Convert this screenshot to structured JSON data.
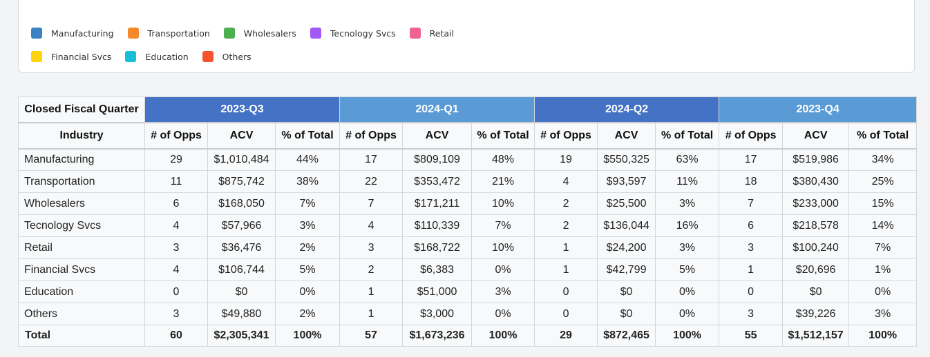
{
  "legend": [
    {
      "label": "Manufacturing",
      "color": "#3b82c4"
    },
    {
      "label": "Transportation",
      "color": "#f5892a"
    },
    {
      "label": "Wholesalers",
      "color": "#4caf50"
    },
    {
      "label": "Tecnology Svcs",
      "color": "#a259f7"
    },
    {
      "label": "Retail",
      "color": "#f06292"
    },
    {
      "label": "Financial Svcs",
      "color": "#fdd40a"
    },
    {
      "label": "Education",
      "color": "#17bed8"
    },
    {
      "label": "Others",
      "color": "#f4532e"
    }
  ],
  "table": {
    "corner_label": "Closed Fiscal Quarter",
    "quarters": [
      {
        "label": "2023-Q3",
        "color": "#4472c4"
      },
      {
        "label": "2024-Q1",
        "color": "#5b9bd5"
      },
      {
        "label": "2024-Q2",
        "color": "#4472c4"
      },
      {
        "label": "2023-Q4",
        "color": "#5b9bd5"
      }
    ],
    "industry_header": "Industry",
    "sub_headers": [
      "# of Opps",
      "ACV",
      "% of Total"
    ],
    "rows": [
      {
        "industry": "Manufacturing",
        "cells": [
          "29",
          "$1,010,484",
          "44%",
          "17",
          "$809,109",
          "48%",
          "19",
          "$550,325",
          "63%",
          "17",
          "$519,986",
          "34%"
        ]
      },
      {
        "industry": "Transportation",
        "cells": [
          "11",
          "$875,742",
          "38%",
          "22",
          "$353,472",
          "21%",
          "4",
          "$93,597",
          "11%",
          "18",
          "$380,430",
          "25%"
        ]
      },
      {
        "industry": "Wholesalers",
        "cells": [
          "6",
          "$168,050",
          "7%",
          "7",
          "$171,211",
          "10%",
          "2",
          "$25,500",
          "3%",
          "7",
          "$233,000",
          "15%"
        ]
      },
      {
        "industry": "Tecnology Svcs",
        "cells": [
          "4",
          "$57,966",
          "3%",
          "4",
          "$110,339",
          "7%",
          "2",
          "$136,044",
          "16%",
          "6",
          "$218,578",
          "14%"
        ]
      },
      {
        "industry": "Retail",
        "cells": [
          "3",
          "$36,476",
          "2%",
          "3",
          "$168,722",
          "10%",
          "1",
          "$24,200",
          "3%",
          "3",
          "$100,240",
          "7%"
        ]
      },
      {
        "industry": "Financial Svcs",
        "cells": [
          "4",
          "$106,744",
          "5%",
          "2",
          "$6,383",
          "0%",
          "1",
          "$42,799",
          "5%",
          "1",
          "$20,696",
          "1%"
        ]
      },
      {
        "industry": "Education",
        "cells": [
          "0",
          "$0",
          "0%",
          "1",
          "$51,000",
          "3%",
          "0",
          "$0",
          "0%",
          "0",
          "$0",
          "0%"
        ]
      },
      {
        "industry": "Others",
        "cells": [
          "3",
          "$49,880",
          "2%",
          "1",
          "$3,000",
          "0%",
          "0",
          "$0",
          "0%",
          "3",
          "$39,226",
          "3%"
        ]
      }
    ],
    "total": {
      "industry": "Total",
      "cells": [
        "60",
        "$2,305,341",
        "100%",
        "57",
        "$1,673,236",
        "100%",
        "29",
        "$872,465",
        "100%",
        "55",
        "$1,512,157",
        "100%"
      ]
    }
  }
}
